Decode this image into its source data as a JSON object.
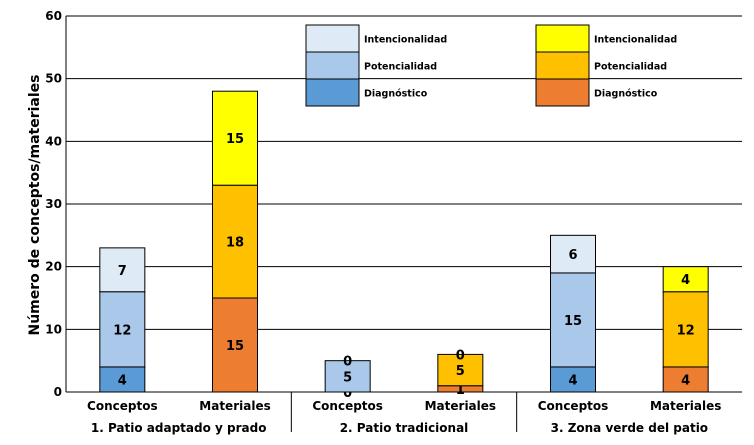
{
  "chart_data": {
    "type": "bar",
    "stacked": true,
    "ylabel": "Número de conceptos/materiales",
    "xlabel": "",
    "ylim": [
      0,
      60
    ],
    "yticks": [
      0,
      10,
      20,
      30,
      40,
      50,
      60
    ],
    "grid": true,
    "series_order": [
      "Diagnóstico",
      "Potencialidad",
      "Intencionalidad"
    ],
    "groups": [
      {
        "label": "1. Patio adaptado y prado",
        "bars": [
          {
            "category": "Conceptos",
            "palette": "blue",
            "values": [
              4,
              12,
              7
            ]
          },
          {
            "category": "Materiales",
            "palette": "orange",
            "values": [
              15,
              18,
              15
            ]
          }
        ]
      },
      {
        "label": "2. Patio tradicional",
        "bars": [
          {
            "category": "Conceptos",
            "palette": "blue",
            "values": [
              0,
              5,
              0
            ]
          },
          {
            "category": "Materiales",
            "palette": "orange",
            "values": [
              1,
              5,
              0
            ]
          }
        ]
      },
      {
        "label": "3. Zona verde del patio",
        "bars": [
          {
            "category": "Conceptos",
            "palette": "blue",
            "values": [
              4,
              15,
              6
            ]
          },
          {
            "category": "Materiales",
            "palette": "orange",
            "values": [
              4,
              12,
              4
            ]
          }
        ]
      }
    ],
    "legends": [
      {
        "palette": "blue",
        "entries": [
          "Intencionalidad",
          "Potencialidad",
          "Diagnóstico"
        ]
      },
      {
        "palette": "orange",
        "entries": [
          "Intencionalidad",
          "Potencialidad",
          "Diagnóstico"
        ]
      }
    ],
    "colors": {
      "blue": [
        "#5b9bd5",
        "#a9c8ea",
        "#deebf7"
      ],
      "orange": [
        "#ed7d31",
        "#ffc000",
        "#ffff00"
      ]
    }
  }
}
